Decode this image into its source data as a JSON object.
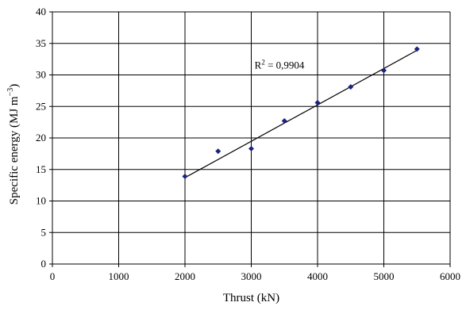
{
  "chart_data": {
    "type": "scatter",
    "xlabel": "Thrust (kN)",
    "ylabel": "Specific energy (MJ m",
    "ylabel_sup": "−3",
    "ylabel_close": ")",
    "xlim": [
      0,
      6000
    ],
    "ylim": [
      0,
      40
    ],
    "xticks": [
      0,
      1000,
      2000,
      3000,
      4000,
      5000,
      6000
    ],
    "yticks": [
      0,
      5,
      10,
      15,
      20,
      25,
      30,
      35,
      40
    ],
    "grid": true,
    "series": [
      {
        "x": [
          2000,
          2500,
          3000,
          3500,
          4000,
          4500,
          5000,
          5500
        ],
        "y": [
          13.9,
          17.9,
          18.3,
          22.7,
          25.6,
          28.1,
          30.7,
          34.1
        ],
        "marker": "diamond",
        "color": "#1a237e"
      }
    ],
    "trendline": {
      "type": "linear",
      "x": [
        2000,
        5500
      ],
      "y": [
        13.7,
        33.9
      ],
      "color": "#000000"
    },
    "annotation": {
      "text_prefix": "R",
      "text_sup": "2",
      "text_value": " = 0,9904",
      "x": 3050,
      "y": 31
    }
  }
}
